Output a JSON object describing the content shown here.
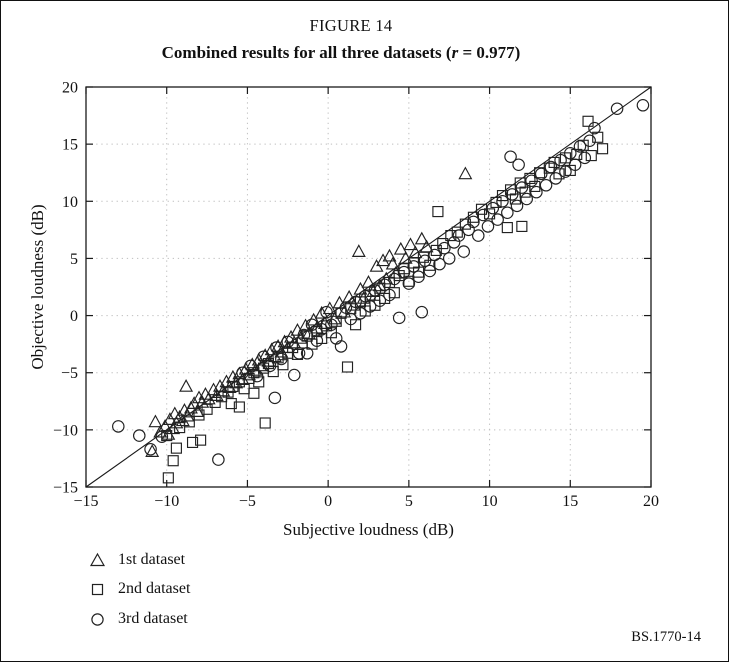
{
  "figure": {
    "label": "FIGURE 14",
    "subtitle_prefix": "Combined results for all three datasets (",
    "subtitle_var": "r",
    "subtitle_suffix": " = 0.977)",
    "footer": "BS.1770-14"
  },
  "legend": {
    "items": [
      {
        "marker": "triangle",
        "label": "1st dataset"
      },
      {
        "marker": "square",
        "label": "2nd dataset"
      },
      {
        "marker": "circle",
        "label": "3rd dataset"
      }
    ]
  },
  "chart_data": {
    "type": "scatter",
    "title": "Combined results for all three datasets (r = 0.977)",
    "figure_label": "FIGURE 14",
    "xlabel": "Subjective loudness (dB)",
    "ylabel": "Objective loudness (dB)",
    "xlim": [
      -15,
      20
    ],
    "ylim": [
      -15,
      20
    ],
    "xticks": [
      -15,
      -10,
      -5,
      0,
      5,
      10,
      15,
      20
    ],
    "yticks": [
      -15,
      -10,
      -5,
      0,
      5,
      10,
      15,
      20
    ],
    "grid": "dotted",
    "legend_position": "below-left",
    "identity_line": {
      "from": [
        -15,
        -15
      ],
      "to": [
        20,
        20
      ]
    },
    "series": [
      {
        "name": "1st dataset",
        "marker": "triangle",
        "points": [
          [
            -10.9,
            -11.9
          ],
          [
            -10.7,
            -9.3
          ],
          [
            -10.4,
            -10.2
          ],
          [
            -10.1,
            -9.7
          ],
          [
            -9.9,
            -10.4
          ],
          [
            -9.8,
            -9.1
          ],
          [
            -9.6,
            -9.9
          ],
          [
            -9.5,
            -8.6
          ],
          [
            -9.4,
            -9.4
          ],
          [
            -9.2,
            -8.9
          ],
          [
            -9.0,
            -9.2
          ],
          [
            -8.9,
            -8.3
          ],
          [
            -8.8,
            -6.2
          ],
          [
            -8.7,
            -8.8
          ],
          [
            -8.5,
            -8.1
          ],
          [
            -8.3,
            -7.7
          ],
          [
            -8.1,
            -8.4
          ],
          [
            -8.0,
            -7.2
          ],
          [
            -7.8,
            -7.6
          ],
          [
            -7.6,
            -6.9
          ],
          [
            -7.4,
            -7.3
          ],
          [
            -7.1,
            -6.5
          ],
          [
            -6.9,
            -7.0
          ],
          [
            -6.7,
            -6.2
          ],
          [
            -6.5,
            -6.6
          ],
          [
            -6.3,
            -5.8
          ],
          [
            -6.1,
            -6.3
          ],
          [
            -5.9,
            -5.4
          ],
          [
            -5.7,
            -5.9
          ],
          [
            -5.5,
            -5.1
          ],
          [
            -5.3,
            -5.6
          ],
          [
            -5.1,
            -4.7
          ],
          [
            -4.9,
            -5.2
          ],
          [
            -4.7,
            -4.3
          ],
          [
            -4.5,
            -4.8
          ],
          [
            -4.3,
            -3.9
          ],
          [
            -4.1,
            -4.4
          ],
          [
            -3.9,
            -3.5
          ],
          [
            -3.7,
            -4.0
          ],
          [
            -3.5,
            -3.0
          ],
          [
            -3.3,
            -3.6
          ],
          [
            -3.1,
            -2.7
          ],
          [
            -2.9,
            -3.2
          ],
          [
            -2.7,
            -2.3
          ],
          [
            -2.5,
            -2.8
          ],
          [
            -2.3,
            -1.9
          ],
          [
            -2.1,
            -2.4
          ],
          [
            -1.9,
            -1.3
          ],
          [
            -1.7,
            -2.0
          ],
          [
            -1.4,
            -0.9
          ],
          [
            -1.2,
            -1.6
          ],
          [
            -0.9,
            -0.4
          ],
          [
            -0.7,
            -1.1
          ],
          [
            -0.4,
            0.2
          ],
          [
            -0.2,
            -0.7
          ],
          [
            0.1,
            0.6
          ],
          [
            0.4,
            -0.3
          ],
          [
            0.7,
            1.1
          ],
          [
            1.0,
            0.3
          ],
          [
            1.3,
            1.6
          ],
          [
            1.6,
            0.9
          ],
          [
            1.9,
            5.6
          ],
          [
            2.0,
            2.3
          ],
          [
            2.2,
            1.5
          ],
          [
            2.5,
            2.9
          ],
          [
            2.8,
            2.1
          ],
          [
            3.0,
            4.3
          ],
          [
            3.2,
            2.6
          ],
          [
            3.4,
            4.8
          ],
          [
            3.6,
            3.2
          ],
          [
            3.8,
            5.2
          ],
          [
            4.0,
            4.5
          ],
          [
            4.2,
            3.7
          ],
          [
            4.5,
            5.8
          ],
          [
            4.8,
            5.0
          ],
          [
            5.1,
            6.2
          ],
          [
            5.4,
            5.5
          ],
          [
            5.8,
            6.7
          ],
          [
            6.1,
            6.0
          ],
          [
            8.5,
            12.4
          ]
        ]
      },
      {
        "name": "2nd dataset",
        "marker": "square",
        "points": [
          [
            -9.9,
            -14.2
          ],
          [
            -9.6,
            -12.7
          ],
          [
            -9.4,
            -11.6
          ],
          [
            -8.4,
            -11.1
          ],
          [
            -7.9,
            -10.9
          ],
          [
            -10.0,
            -10.5
          ],
          [
            -9.2,
            -9.8
          ],
          [
            -8.6,
            -9.3
          ],
          [
            -8.0,
            -8.7
          ],
          [
            -7.5,
            -8.2
          ],
          [
            -7.0,
            -7.6
          ],
          [
            -6.6,
            -7.1
          ],
          [
            -6.2,
            -6.7
          ],
          [
            -6.0,
            -7.7
          ],
          [
            -5.9,
            -6.2
          ],
          [
            -5.5,
            -8.0
          ],
          [
            -5.5,
            -5.8
          ],
          [
            -5.2,
            -6.4
          ],
          [
            -4.9,
            -5.5
          ],
          [
            -4.6,
            -6.8
          ],
          [
            -4.6,
            -5.0
          ],
          [
            -4.3,
            -5.8
          ],
          [
            -4.0,
            -4.6
          ],
          [
            -3.9,
            -9.4
          ],
          [
            -3.7,
            -4.2
          ],
          [
            -3.4,
            -4.9
          ],
          [
            -3.1,
            -3.7
          ],
          [
            -2.8,
            -4.3
          ],
          [
            -2.5,
            -3.3
          ],
          [
            -2.2,
            -2.8
          ],
          [
            -1.9,
            -3.4
          ],
          [
            -1.6,
            -2.4
          ],
          [
            -1.3,
            -1.8
          ],
          [
            -1.0,
            -2.5
          ],
          [
            -0.7,
            -1.4
          ],
          [
            -0.4,
            -2.0
          ],
          [
            -0.1,
            -0.9
          ],
          [
            0.2,
            -1.5
          ],
          [
            0.5,
            -0.5
          ],
          [
            0.8,
            0.2
          ],
          [
            1.2,
            -4.5
          ],
          [
            1.4,
            0.6
          ],
          [
            1.7,
            -0.8
          ],
          [
            2.0,
            1.2
          ],
          [
            2.3,
            0.4
          ],
          [
            2.6,
            1.8
          ],
          [
            2.9,
            0.9
          ],
          [
            3.2,
            2.4
          ],
          [
            3.5,
            1.5
          ],
          [
            3.8,
            2.9
          ],
          [
            4.1,
            2.0
          ],
          [
            4.4,
            3.5
          ],
          [
            4.7,
            4.1
          ],
          [
            5.0,
            3.0
          ],
          [
            5.3,
            4.6
          ],
          [
            5.6,
            3.8
          ],
          [
            5.9,
            5.1
          ],
          [
            6.3,
            4.4
          ],
          [
            6.8,
            9.1
          ],
          [
            6.7,
            5.7
          ],
          [
            7.1,
            6.3
          ],
          [
            7.6,
            7.0
          ],
          [
            8.0,
            7.3
          ],
          [
            8.5,
            8.0
          ],
          [
            9.0,
            8.6
          ],
          [
            9.5,
            9.3
          ],
          [
            10.0,
            8.9
          ],
          [
            10.4,
            9.9
          ],
          [
            10.8,
            10.5
          ],
          [
            11.1,
            7.7
          ],
          [
            11.3,
            11.0
          ],
          [
            11.6,
            10.2
          ],
          [
            11.9,
            11.6
          ],
          [
            12.0,
            7.8
          ],
          [
            12.2,
            10.8
          ],
          [
            12.5,
            12.0
          ],
          [
            12.8,
            11.3
          ],
          [
            13.1,
            12.5
          ],
          [
            13.7,
            12.9
          ],
          [
            14.0,
            13.4
          ],
          [
            14.3,
            12.4
          ],
          [
            14.7,
            13.8
          ],
          [
            15.0,
            12.7
          ],
          [
            15.4,
            14.1
          ],
          [
            15.8,
            14.9
          ],
          [
            16.1,
            17.0
          ],
          [
            16.3,
            14.0
          ],
          [
            16.7,
            15.6
          ],
          [
            17.0,
            14.6
          ]
        ]
      },
      {
        "name": "3rd dataset",
        "marker": "circle",
        "points": [
          [
            -13.0,
            -9.7
          ],
          [
            -11.7,
            -10.5
          ],
          [
            -11.0,
            -11.7
          ],
          [
            -10.3,
            -10.6
          ],
          [
            -6.8,
            -12.6
          ],
          [
            -5.3,
            -5.0
          ],
          [
            -4.8,
            -4.4
          ],
          [
            -4.4,
            -5.3
          ],
          [
            -4.0,
            -3.6
          ],
          [
            -3.6,
            -4.4
          ],
          [
            -3.3,
            -7.2
          ],
          [
            -3.2,
            -2.8
          ],
          [
            -2.9,
            -3.8
          ],
          [
            -2.5,
            -2.3
          ],
          [
            -2.1,
            -5.2
          ],
          [
            -1.8,
            -3.3
          ],
          [
            -1.5,
            -1.7
          ],
          [
            -1.3,
            -3.3
          ],
          [
            -1.0,
            -0.8
          ],
          [
            -0.7,
            -2.2
          ],
          [
            -0.4,
            -1.2
          ],
          [
            -0.1,
            0.3
          ],
          [
            0.2,
            -0.8
          ],
          [
            0.5,
            -2.0
          ],
          [
            0.8,
            -2.7
          ],
          [
            1.1,
            0.7
          ],
          [
            1.4,
            -0.3
          ],
          [
            1.7,
            1.2
          ],
          [
            2.0,
            0.2
          ],
          [
            2.3,
            1.7
          ],
          [
            2.6,
            0.8
          ],
          [
            2.9,
            2.2
          ],
          [
            3.2,
            1.3
          ],
          [
            3.5,
            2.7
          ],
          [
            3.8,
            1.8
          ],
          [
            4.1,
            3.2
          ],
          [
            4.4,
            -0.2
          ],
          [
            4.7,
            3.8
          ],
          [
            5.0,
            2.8
          ],
          [
            5.3,
            4.3
          ],
          [
            5.6,
            3.4
          ],
          [
            5.8,
            0.3
          ],
          [
            6.0,
            4.8
          ],
          [
            6.3,
            3.9
          ],
          [
            6.6,
            5.3
          ],
          [
            6.9,
            4.5
          ],
          [
            7.2,
            5.9
          ],
          [
            7.5,
            5.0
          ],
          [
            7.8,
            6.4
          ],
          [
            8.1,
            7.0
          ],
          [
            8.4,
            5.6
          ],
          [
            8.7,
            7.5
          ],
          [
            9.0,
            8.2
          ],
          [
            9.3,
            7.0
          ],
          [
            9.6,
            8.8
          ],
          [
            9.9,
            7.8
          ],
          [
            10.2,
            9.4
          ],
          [
            10.5,
            8.4
          ],
          [
            10.8,
            10.0
          ],
          [
            11.1,
            9.0
          ],
          [
            11.3,
            13.9
          ],
          [
            11.4,
            10.6
          ],
          [
            11.7,
            9.6
          ],
          [
            11.8,
            13.2
          ],
          [
            12.0,
            11.2
          ],
          [
            12.3,
            10.2
          ],
          [
            12.6,
            11.8
          ],
          [
            12.9,
            10.8
          ],
          [
            13.2,
            12.4
          ],
          [
            13.5,
            11.4
          ],
          [
            13.8,
            13.0
          ],
          [
            14.1,
            12.0
          ],
          [
            14.4,
            13.6
          ],
          [
            14.7,
            12.6
          ],
          [
            15.0,
            14.2
          ],
          [
            15.3,
            13.2
          ],
          [
            15.6,
            14.8
          ],
          [
            15.9,
            13.8
          ],
          [
            16.2,
            15.3
          ],
          [
            16.5,
            16.4
          ],
          [
            17.9,
            18.1
          ],
          [
            19.5,
            18.4
          ]
        ]
      }
    ]
  }
}
